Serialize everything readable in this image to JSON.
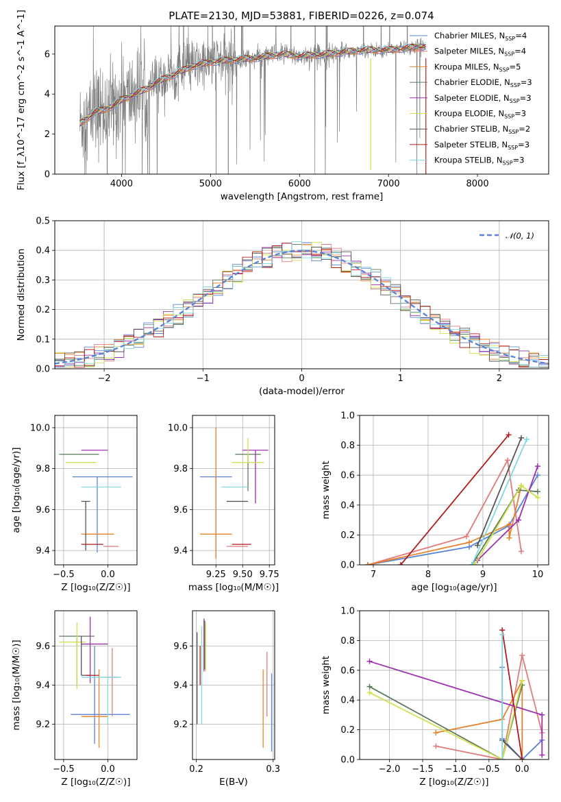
{
  "figure_title": "PLATE=2130, MJD=53881, FIBERID=0226, z=0.074",
  "colors": {
    "Chabrier MILES": "#5b84d6",
    "Salpeter MILES": "#e07a7a",
    "Kroupa MILES": "#e8822a",
    "Chabrier ELODIE": "#5a7a5a",
    "Salpeter ELODIE": "#9b2fae",
    "Kroupa ELODIE": "#cfe24d",
    "Chabrier STELIB": "#555555",
    "Salpeter STELIB": "#b01c1c",
    "Kroupa STELIB": "#7fd8de",
    "data": "#7f7f7f"
  },
  "chart_data": [
    {
      "type": "line",
      "id": "spectrum",
      "xlabel": "wavelength [Angstrom, rest frame]",
      "ylabel": "Flux [f_λ10^-17 erg cm^-2 s^-1 A^-1]",
      "xlim": [
        3250,
        8800
      ],
      "ylim": [
        0,
        7.4
      ],
      "xticks": [
        4000,
        5000,
        6000,
        7000,
        8000
      ],
      "yticks": [
        0,
        2,
        4,
        6
      ],
      "grid": false,
      "legend_position": "bottom-right",
      "continuum_model": {
        "x": [
          3530,
          3700,
          3800,
          3900,
          4000,
          4100,
          4200,
          4300,
          4400,
          4500,
          4600,
          4800,
          5000,
          5200,
          5500,
          5800,
          6000,
          6300,
          6500,
          6700,
          7000,
          7200,
          7400
        ],
        "y": [
          2.5,
          3.1,
          3.2,
          3.4,
          3.7,
          3.9,
          4.1,
          4.3,
          4.6,
          4.8,
          5.0,
          5.4,
          5.6,
          5.7,
          5.8,
          6.0,
          5.9,
          6.0,
          6.1,
          6.2,
          6.2,
          6.3,
          6.4
        ]
      },
      "legend": [
        {
          "label": "Chabrier MILES, N",
          "sub": "SSP",
          "tail": "=4"
        },
        {
          "label": "Salpeter MILES, N",
          "sub": "SSP",
          "tail": "=4"
        },
        {
          "label": "Kroupa MILES, N",
          "sub": "SSP",
          "tail": "=5"
        },
        {
          "label": "Chabrier ELODIE, N",
          "sub": "SSP",
          "tail": "=3"
        },
        {
          "label": "Salpeter ELODIE, N",
          "sub": "SSP",
          "tail": "=3"
        },
        {
          "label": "Kroupa ELODIE, N",
          "sub": "SSP",
          "tail": "=3"
        },
        {
          "label": "Chabrier STELIB, N",
          "sub": "SSP",
          "tail": "=2"
        },
        {
          "label": "Salpeter STELIB, N",
          "sub": "SSP",
          "tail": "=3"
        },
        {
          "label": "Kroupa STELIB, N",
          "sub": "SSP",
          "tail": "=3"
        }
      ]
    },
    {
      "type": "histogram",
      "id": "residuals",
      "xlabel": "(data-model)/error",
      "ylabel": "Normed distribution",
      "xlim": [
        -2.5,
        2.5
      ],
      "ylim": [
        0,
        0.5
      ],
      "xticks": [
        -2,
        -1,
        0,
        1,
        2
      ],
      "yticks": [
        0.0,
        0.1,
        0.2,
        0.3,
        0.4,
        0.5
      ],
      "grid": true,
      "legend": "𝒩(0, 1)",
      "legend_position": "top-right",
      "bin_width": 0.1,
      "bin_start": -2.5,
      "series_order": [
        "Chabrier MILES",
        "Salpeter MILES",
        "Kroupa MILES",
        "Chabrier ELODIE",
        "Salpeter ELODIE",
        "Kroupa ELODIE",
        "Chabrier STELIB",
        "Salpeter STELIB",
        "Kroupa STELIB"
      ]
    },
    {
      "type": "errorbar",
      "id": "age_vs_Z",
      "xlabel": "Z [log₁₀(Z/Z☉)]",
      "ylabel": "age  [log₁₀(age/yr)]",
      "xlim": [
        -0.6,
        0.33
      ],
      "ylim": [
        9.33,
        10.06
      ],
      "xticks": [
        -0.5,
        0.0
      ],
      "yticks": [
        9.4,
        9.6,
        9.8,
        10.0
      ],
      "grid": true,
      "points": [
        {
          "s": "Chabrier MILES",
          "x": -0.12,
          "xerr": [
            0.28,
            0.4
          ],
          "y": 9.76,
          "yerr": [
            0.37,
            0.0
          ]
        },
        {
          "s": "Salpeter MILES",
          "x": 0.05,
          "xerr": [
            0.1,
            0.07
          ],
          "y": 9.42,
          "yerr": [
            0.0,
            0.0
          ]
        },
        {
          "s": "Kroupa MILES",
          "x": -0.08,
          "xerr": [
            0.22,
            0.15
          ],
          "y": 9.48,
          "yerr": [
            0.0,
            0.0
          ]
        },
        {
          "s": "Chabrier ELODIE",
          "x": -0.3,
          "xerr": [
            0.25,
            0.2
          ],
          "y": 9.87,
          "yerr": [
            0.0,
            0.0
          ]
        },
        {
          "s": "Salpeter ELODIE",
          "x": -0.2,
          "xerr": [
            0.1,
            0.2
          ],
          "y": 9.89,
          "yerr": [
            0.0,
            0.0
          ]
        },
        {
          "s": "Kroupa ELODIE",
          "x": -0.28,
          "xerr": [
            0.2,
            0.15
          ],
          "y": 9.83,
          "yerr": [
            0.0,
            0.0
          ]
        },
        {
          "s": "Chabrier STELIB",
          "x": -0.25,
          "xerr": [
            0.05,
            0.05
          ],
          "y": 9.64,
          "yerr": [
            0.24,
            0.0
          ]
        },
        {
          "s": "Salpeter STELIB",
          "x": -0.15,
          "xerr": [
            0.15,
            0.1
          ],
          "y": 9.43,
          "yerr": [
            0.0,
            0.0
          ]
        },
        {
          "s": "Kroupa STELIB",
          "x": -0.05,
          "xerr": [
            0.25,
            0.2
          ],
          "y": 9.71,
          "yerr": [
            0.0,
            0.0
          ]
        }
      ]
    },
    {
      "type": "errorbar",
      "id": "age_vs_mass",
      "xlabel": "mass [log₁₀(M/M☉)]",
      "ylabel": "",
      "xlim": [
        9.03,
        9.8
      ],
      "ylim": [
        9.33,
        10.06
      ],
      "xticks": [
        9.25,
        9.5,
        9.75
      ],
      "yticks": [
        9.4,
        9.6,
        9.8,
        10.0
      ],
      "grid": true,
      "points": [
        {
          "s": "Chabrier MILES",
          "x": 9.25,
          "xerr": [
            0.15,
            0.15
          ],
          "y": 9.76,
          "yerr": [
            0.39,
            0.0
          ]
        },
        {
          "s": "Salpeter MILES",
          "x": 9.45,
          "xerr": [
            0.1,
            0.1
          ],
          "y": 9.42,
          "yerr": [
            0.0,
            0.0
          ]
        },
        {
          "s": "Kroupa MILES",
          "x": 9.25,
          "xerr": [
            0.15,
            0.15
          ],
          "y": 9.48,
          "yerr": [
            0.12,
            0.52
          ]
        },
        {
          "s": "Chabrier ELODIE",
          "x": 9.55,
          "xerr": [
            0.12,
            0.12
          ],
          "y": 9.87,
          "yerr": [
            0.18,
            0.0
          ]
        },
        {
          "s": "Salpeter ELODIE",
          "x": 9.62,
          "xerr": [
            0.12,
            0.12
          ],
          "y": 9.89,
          "yerr": [
            0.26,
            0.0
          ]
        },
        {
          "s": "Kroupa ELODIE",
          "x": 9.55,
          "xerr": [
            0.15,
            0.15
          ],
          "y": 9.83,
          "yerr": [
            0.0,
            0.12
          ]
        },
        {
          "s": "Chabrier STELIB",
          "x": 9.45,
          "xerr": [
            0.1,
            0.1
          ],
          "y": 9.64,
          "yerr": [
            0.0,
            0.0
          ]
        },
        {
          "s": "Salpeter STELIB",
          "x": 9.5,
          "xerr": [
            0.1,
            0.08
          ],
          "y": 9.43,
          "yerr": [
            0.0,
            0.0
          ]
        },
        {
          "s": "Kroupa STELIB",
          "x": 9.45,
          "xerr": [
            0.15,
            0.1
          ],
          "y": 9.71,
          "yerr": [
            0.0,
            0.0
          ]
        }
      ]
    },
    {
      "type": "line",
      "id": "weight_vs_age",
      "xlabel": "age  [log₁₀(age/yr)]",
      "ylabel": "mass weight",
      "xlim": [
        6.75,
        10.2
      ],
      "ylim": [
        0,
        1.0
      ],
      "xticks": [
        7,
        8,
        9,
        10
      ],
      "yticks": [
        0.0,
        0.2,
        0.4,
        0.6,
        0.8,
        1.0
      ],
      "grid": true,
      "series": [
        {
          "name": "Chabrier MILES",
          "x": [
            6.9,
            8.75,
            9.47,
            10.0
          ],
          "y": [
            0.0,
            0.12,
            0.26,
            0.6
          ]
        },
        {
          "name": "Salpeter MILES",
          "x": [
            6.9,
            8.7,
            9.45,
            9.7
          ],
          "y": [
            0.0,
            0.19,
            0.7,
            0.09
          ]
        },
        {
          "name": "Kroupa MILES",
          "x": [
            6.9,
            8.75,
            9.48,
            9.48,
            9.7
          ],
          "y": [
            0.0,
            0.15,
            0.27,
            0.18,
            0.53
          ]
        },
        {
          "name": "Chabrier ELODIE",
          "x": [
            8.8,
            9.65,
            10.0
          ],
          "y": [
            0.0,
            0.5,
            0.49
          ]
        },
        {
          "name": "Salpeter ELODIE",
          "x": [
            8.9,
            9.65,
            10.0
          ],
          "y": [
            0.03,
            0.3,
            0.66
          ]
        },
        {
          "name": "Kroupa ELODIE",
          "x": [
            8.85,
            9.7,
            10.0
          ],
          "y": [
            0.0,
            0.53,
            0.45
          ]
        },
        {
          "name": "Chabrier STELIB",
          "x": [
            8.9,
            9.7
          ],
          "y": [
            0.13,
            0.85
          ]
        },
        {
          "name": "Salpeter STELIB",
          "x": [
            7.5,
            9.47
          ],
          "y": [
            0.0,
            0.87
          ]
        },
        {
          "name": "Kroupa STELIB",
          "x": [
            8.8,
            9.8
          ],
          "y": [
            0.0,
            0.84
          ]
        }
      ]
    },
    {
      "type": "errorbar",
      "id": "mass_vs_Z",
      "xlabel": "Z [log₁₀(Z/Z☉)]",
      "ylabel": "mass [log₁₀(M/M☉)]",
      "xlim": [
        -0.6,
        0.33
      ],
      "ylim": [
        9.02,
        9.78
      ],
      "xticks": [
        -0.5,
        0.0
      ],
      "yticks": [
        9.2,
        9.4,
        9.6
      ],
      "grid": true,
      "points": [
        {
          "s": "Chabrier MILES",
          "x": -0.15,
          "xerr": [
            0.27,
            0.4
          ],
          "y": 9.25,
          "yerr": [
            0.15,
            0.35
          ]
        },
        {
          "s": "Salpeter MILES",
          "x": 0.05,
          "xerr": [
            0.1,
            0.07
          ],
          "y": 9.44,
          "yerr": [
            0.2,
            0.15
          ]
        },
        {
          "s": "Kroupa MILES",
          "x": -0.1,
          "xerr": [
            0.2,
            0.1
          ],
          "y": 9.24,
          "yerr": [
            0.16,
            0.24
          ]
        },
        {
          "s": "Chabrier ELODIE",
          "x": -0.35,
          "xerr": [
            0.2,
            0.2
          ],
          "y": 9.65,
          "yerr": [
            0.25,
            0.0
          ]
        },
        {
          "s": "Salpeter ELODIE",
          "x": -0.2,
          "xerr": [
            0.1,
            0.2
          ],
          "y": 9.61,
          "yerr": [
            0.2,
            0.14
          ]
        },
        {
          "s": "Kroupa ELODIE",
          "x": -0.35,
          "xerr": [
            0.2,
            0.1
          ],
          "y": 9.62,
          "yerr": [
            0.24,
            0.1
          ]
        },
        {
          "s": "Chabrier STELIB",
          "x": -0.3,
          "xerr": [
            0.0,
            0.1
          ],
          "y": 9.45,
          "yerr": [
            0.0,
            0.2
          ]
        },
        {
          "s": "Salpeter STELIB",
          "x": -0.15,
          "xerr": [
            0.1,
            0.05
          ],
          "y": 9.45,
          "yerr": [
            0.0,
            0.0
          ]
        },
        {
          "s": "Kroupa STELIB",
          "x": 0.0,
          "xerr": [
            0.3,
            0.15
          ],
          "y": 9.44,
          "yerr": [
            0.24,
            0.0
          ]
        }
      ]
    },
    {
      "type": "errorbar",
      "id": "mass_vs_EBV",
      "xlabel": "E(B-V)",
      "ylabel": "",
      "xlim": [
        0.195,
        0.302
      ],
      "ylim": [
        9.02,
        9.78
      ],
      "xticks": [
        0.2,
        0.3
      ],
      "yticks": [
        9.2,
        9.4,
        9.6
      ],
      "grid": true,
      "points": [
        {
          "s": "Chabrier MILES",
          "x": 0.298,
          "xerr": [
            0,
            0
          ],
          "y": 9.26,
          "yerr": [
            0.2,
            0.2
          ]
        },
        {
          "s": "Salpeter MILES",
          "x": 0.292,
          "xerr": [
            0,
            0
          ],
          "y": 9.4,
          "yerr": [
            0.16,
            0.17
          ]
        },
        {
          "s": "Kroupa MILES",
          "x": 0.287,
          "xerr": [
            0,
            0
          ],
          "y": 9.28,
          "yerr": [
            0.2,
            0.2
          ]
        },
        {
          "s": "Chabrier ELODIE",
          "x": 0.211,
          "xerr": [
            0,
            0
          ],
          "y": 9.6,
          "yerr": [
            0.12,
            0.13
          ]
        },
        {
          "s": "Salpeter ELODIE",
          "x": 0.21,
          "xerr": [
            0,
            0
          ],
          "y": 9.6,
          "yerr": [
            0.13,
            0.14
          ]
        },
        {
          "s": "Kroupa ELODIE",
          "x": 0.212,
          "xerr": [
            0,
            0
          ],
          "y": 9.6,
          "yerr": [
            0.13,
            0.12
          ]
        },
        {
          "s": "Chabrier STELIB",
          "x": 0.201,
          "xerr": [
            0,
            0
          ],
          "y": 9.45,
          "yerr": [
            0.25,
            0.22
          ]
        },
        {
          "s": "Salpeter STELIB",
          "x": 0.205,
          "xerr": [
            0,
            0
          ],
          "y": 9.5,
          "yerr": [
            0.1,
            0.1
          ]
        },
        {
          "s": "Kroupa STELIB",
          "x": 0.207,
          "xerr": [
            0,
            0
          ],
          "y": 9.45,
          "yerr": [
            0.25,
            0.25
          ]
        }
      ]
    },
    {
      "type": "line",
      "id": "weight_vs_Z",
      "xlabel": "Z [log₁₀(Z/Z☉)]",
      "ylabel": "mass weight",
      "xlim": [
        -2.45,
        0.4
      ],
      "ylim": [
        0,
        1.0
      ],
      "xticks": [
        -2.0,
        -1.5,
        -1.0,
        -0.5,
        0.0
      ],
      "yticks": [
        0.0,
        0.2,
        0.4,
        0.6,
        0.8,
        1.0
      ],
      "grid": true,
      "series": [
        {
          "name": "Chabrier MILES",
          "x": [
            -0.3,
            -0.3,
            0.0,
            0.3
          ],
          "y": [
            0.62,
            0.14,
            0.0,
            0.13
          ]
        },
        {
          "name": "Salpeter MILES",
          "x": [
            -1.3,
            -0.3,
            0.0,
            0.3
          ],
          "y": [
            0.09,
            0.0,
            0.7,
            0.18
          ]
        },
        {
          "name": "Kroupa MILES",
          "x": [
            -1.3,
            -0.3,
            0.0,
            0.0
          ],
          "y": [
            0.18,
            0.27,
            0.53,
            0.0
          ]
        },
        {
          "name": "Chabrier ELODIE",
          "x": [
            -2.3,
            -0.3,
            0.0
          ],
          "y": [
            0.49,
            0.0,
            0.5
          ]
        },
        {
          "name": "Salpeter ELODIE",
          "x": [
            -2.3,
            0.3,
            0.3
          ],
          "y": [
            0.66,
            0.3,
            0.03
          ]
        },
        {
          "name": "Kroupa ELODIE",
          "x": [
            -2.3,
            -0.3,
            0.0
          ],
          "y": [
            0.45,
            0.0,
            0.53
          ]
        },
        {
          "name": "Chabrier STELIB",
          "x": [
            -0.3,
            0.0
          ],
          "y": [
            0.13,
            0.0
          ]
        },
        {
          "name": "Salpeter STELIB",
          "x": [
            -0.3,
            0.0
          ],
          "y": [
            0.87,
            0.0
          ]
        },
        {
          "name": "Kroupa STELIB",
          "x": [
            -0.3,
            -0.3
          ],
          "y": [
            0.84,
            0.0
          ]
        }
      ]
    }
  ]
}
